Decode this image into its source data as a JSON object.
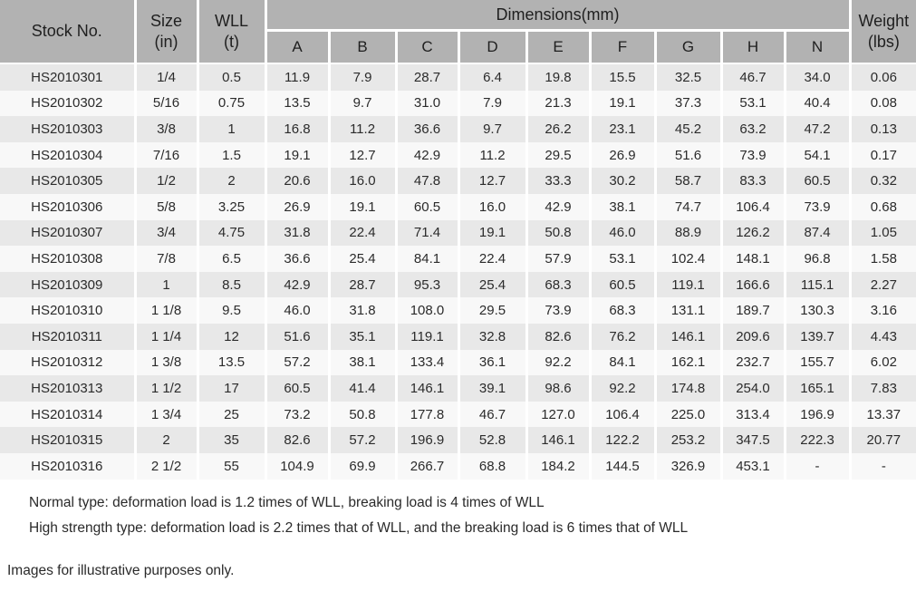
{
  "table": {
    "header": {
      "stock_no": "Stock No.",
      "size": "Size\n(in)",
      "wll": "WLL\n(t)",
      "dimensions": "Dimensions(mm)",
      "weight": "Weight\n(lbs)",
      "dim_columns": [
        "A",
        "B",
        "C",
        "D",
        "E",
        "F",
        "G",
        "H",
        "N"
      ]
    },
    "rows": [
      [
        "HS2010301",
        "1/4",
        "0.5",
        "11.9",
        "7.9",
        "28.7",
        "6.4",
        "19.8",
        "15.5",
        "32.5",
        "46.7",
        "34.0",
        "0.06"
      ],
      [
        "HS2010302",
        "5/16",
        "0.75",
        "13.5",
        "9.7",
        "31.0",
        "7.9",
        "21.3",
        "19.1",
        "37.3",
        "53.1",
        "40.4",
        "0.08"
      ],
      [
        "HS2010303",
        "3/8",
        "1",
        "16.8",
        "11.2",
        "36.6",
        "9.7",
        "26.2",
        "23.1",
        "45.2",
        "63.2",
        "47.2",
        "0.13"
      ],
      [
        "HS2010304",
        "7/16",
        "1.5",
        "19.1",
        "12.7",
        "42.9",
        "11.2",
        "29.5",
        "26.9",
        "51.6",
        "73.9",
        "54.1",
        "0.17"
      ],
      [
        "HS2010305",
        "1/2",
        "2",
        "20.6",
        "16.0",
        "47.8",
        "12.7",
        "33.3",
        "30.2",
        "58.7",
        "83.3",
        "60.5",
        "0.32"
      ],
      [
        "HS2010306",
        "5/8",
        "3.25",
        "26.9",
        "19.1",
        "60.5",
        "16.0",
        "42.9",
        "38.1",
        "74.7",
        "106.4",
        "73.9",
        "0.68"
      ],
      [
        "HS2010307",
        "3/4",
        "4.75",
        "31.8",
        "22.4",
        "71.4",
        "19.1",
        "50.8",
        "46.0",
        "88.9",
        "126.2",
        "87.4",
        "1.05"
      ],
      [
        "HS2010308",
        "7/8",
        "6.5",
        "36.6",
        "25.4",
        "84.1",
        "22.4",
        "57.9",
        "53.1",
        "102.4",
        "148.1",
        "96.8",
        "1.58"
      ],
      [
        "HS2010309",
        "1",
        "8.5",
        "42.9",
        "28.7",
        "95.3",
        "25.4",
        "68.3",
        "60.5",
        "119.1",
        "166.6",
        "115.1",
        "2.27"
      ],
      [
        "HS2010310",
        "1 1/8",
        "9.5",
        "46.0",
        "31.8",
        "108.0",
        "29.5",
        "73.9",
        "68.3",
        "131.1",
        "189.7",
        "130.3",
        "3.16"
      ],
      [
        "HS2010311",
        "1 1/4",
        "12",
        "51.6",
        "35.1",
        "119.1",
        "32.8",
        "82.6",
        "76.2",
        "146.1",
        "209.6",
        "139.7",
        "4.43"
      ],
      [
        "HS2010312",
        "1 3/8",
        "13.5",
        "57.2",
        "38.1",
        "133.4",
        "36.1",
        "92.2",
        "84.1",
        "162.1",
        "232.7",
        "155.7",
        "6.02"
      ],
      [
        "HS2010313",
        "1 1/2",
        "17",
        "60.5",
        "41.4",
        "146.1",
        "39.1",
        "98.6",
        "92.2",
        "174.8",
        "254.0",
        "165.1",
        "7.83"
      ],
      [
        "HS2010314",
        "1 3/4",
        "25",
        "73.2",
        "50.8",
        "177.8",
        "46.7",
        "127.0",
        "106.4",
        "225.0",
        "313.4",
        "196.9",
        "13.37"
      ],
      [
        "HS2010315",
        "2",
        "35",
        "82.6",
        "57.2",
        "196.9",
        "52.8",
        "146.1",
        "122.2",
        "253.2",
        "347.5",
        "222.3",
        "20.77"
      ],
      [
        "HS2010316",
        "2 1/2",
        "55",
        "104.9",
        "69.9",
        "266.7",
        "68.8",
        "184.2",
        "144.5",
        "326.9",
        "453.1",
        "-",
        "-"
      ]
    ]
  },
  "notes": [
    "Normal type: deformation load is 1.2 times of WLL, breaking load is 4 times of WLL",
    "High strength type: deformation load is 2.2 times that of WLL, and the breaking load is 6 times that of WLL"
  ],
  "disclaimer": "Images for illustrative purposes only.",
  "colors": {
    "header_bg": "#b2b2b2",
    "row_odd_bg": "#e8e8e8",
    "row_even_bg": "#f8f8f8",
    "separator": "#ffffff",
    "text": "#2b2b2b"
  }
}
